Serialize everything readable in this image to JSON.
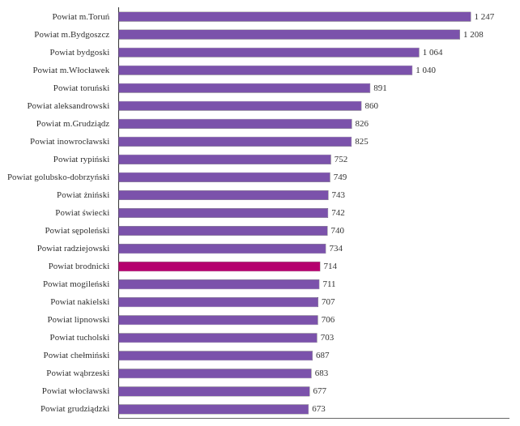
{
  "chart_data": {
    "type": "bar",
    "orientation": "horizontal",
    "categories": [
      "Powiat m.Toruń",
      "Powiat m.Bydgoszcz",
      "Powiat bydgoski",
      "Powiat m.Włocławek",
      "Powiat toruński",
      "Powiat aleksandrowski",
      "Powiat m.Grudziądz",
      "Powiat inowrocławski",
      "Powiat rypiński",
      "Powiat golubsko-dobrzyński",
      "Powiat żniński",
      "Powiat świecki",
      "Powiat sępoleński",
      "Powiat radziejowski",
      "Powiat brodnicki",
      "Powiat mogileński",
      "Powiat nakielski",
      "Powiat lipnowski",
      "Powiat tucholski",
      "Powiat chełmiński",
      "Powiat wąbrzeski",
      "Powiat włocławski",
      "Powiat grudziądzki"
    ],
    "values": [
      1247,
      1208,
      1064,
      1040,
      891,
      860,
      826,
      825,
      752,
      749,
      743,
      742,
      740,
      734,
      714,
      711,
      707,
      706,
      703,
      687,
      683,
      677,
      673
    ],
    "value_labels": [
      "1 247",
      "1 208",
      "1 064",
      "1 040",
      "891",
      "860",
      "826",
      "825",
      "752",
      "749",
      "743",
      "742",
      "740",
      "734",
      "714",
      "711",
      "707",
      "706",
      "703",
      "687",
      "683",
      "677",
      "673"
    ],
    "colors": [
      "#7b52ab",
      "#7b52ab",
      "#7b52ab",
      "#7b52ab",
      "#7b52ab",
      "#7b52ab",
      "#7b52ab",
      "#7b52ab",
      "#7b52ab",
      "#7b52ab",
      "#7b52ab",
      "#7b52ab",
      "#7b52ab",
      "#7b52ab",
      "#b5006e",
      "#7b52ab",
      "#7b52ab",
      "#7b52ab",
      "#7b52ab",
      "#7b52ab",
      "#7b52ab",
      "#7b52ab",
      "#7b52ab"
    ],
    "xlim": [
      0,
      1380
    ],
    "data_labels": true,
    "tick_labels": "y",
    "grid": false
  }
}
